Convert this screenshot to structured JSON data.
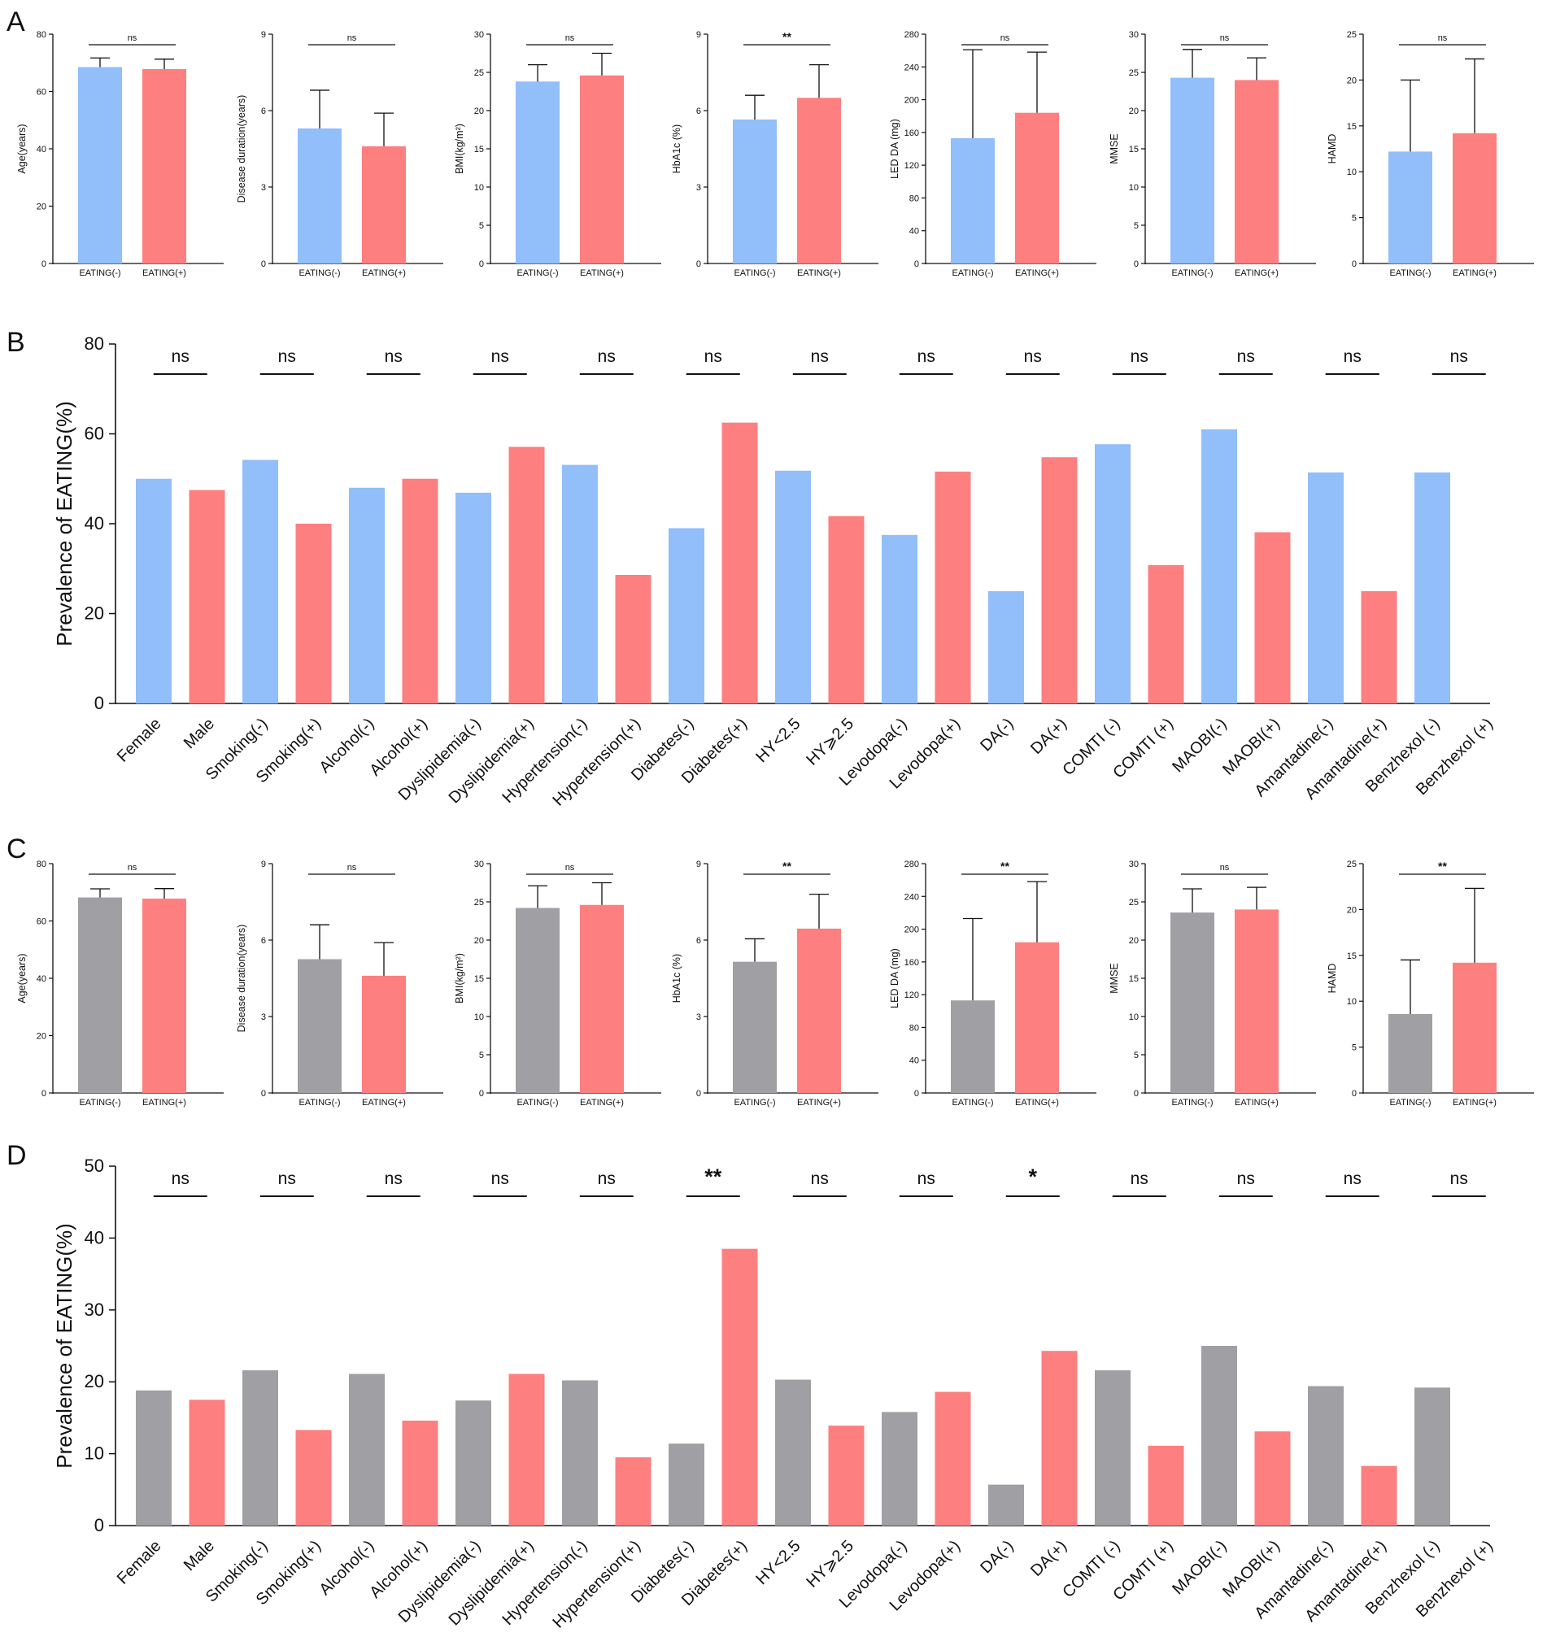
{
  "colors": {
    "blue": "#92bef9",
    "red": "#fd7f80",
    "gray": "#a09fa4"
  },
  "panel_letters": [
    "A",
    "B",
    "C",
    "D"
  ],
  "chart_data": [
    {
      "panel": "A",
      "type": "bar",
      "title": "",
      "categories": [
        "EATING(-)",
        "EATING(+)"
      ],
      "subplots": [
        {
          "ylabel": "Age(years)",
          "ylim": [
            0,
            80
          ],
          "yticks": [
            "0",
            "20",
            "40",
            "60",
            "80"
          ],
          "values": [
            68.5,
            67.8
          ],
          "errors": [
            3.2,
            3.5
          ],
          "sig": "ns"
        },
        {
          "ylabel": "Disease duration(years)",
          "ylim": [
            0,
            9
          ],
          "yticks": [
            "0",
            "3",
            "6",
            "9"
          ],
          "values": [
            5.3,
            4.6
          ],
          "errors": [
            1.5,
            1.3
          ],
          "sig": "ns"
        },
        {
          "ylabel": "BMI(kg/m²)",
          "ylim": [
            0,
            30
          ],
          "yticks": [
            "0",
            "5",
            "10",
            "15",
            "20",
            "25",
            "30"
          ],
          "values": [
            23.8,
            24.6
          ],
          "errors": [
            2.2,
            2.9
          ],
          "sig": "ns"
        },
        {
          "ylabel": "HbA1c (%)",
          "ylim": [
            0,
            9
          ],
          "yticks": [
            "0",
            "3",
            "6",
            "9"
          ],
          "values": [
            5.65,
            6.5
          ],
          "errors": [
            0.95,
            1.3
          ],
          "sig": "**"
        },
        {
          "ylabel": "LED DA (mg)",
          "ylim": [
            0,
            280
          ],
          "yticks": [
            "0",
            "40",
            "80",
            "120",
            "160",
            "200",
            "240",
            "280"
          ],
          "values": [
            153,
            184
          ],
          "errors": [
            108,
            74
          ],
          "sig": "ns"
        },
        {
          "ylabel": "MMSE",
          "ylim": [
            0,
            30
          ],
          "yticks": [
            "0",
            "5",
            "10",
            "15",
            "20",
            "25",
            "30"
          ],
          "values": [
            24.3,
            24.0
          ],
          "errors": [
            3.7,
            2.9
          ],
          "sig": "ns"
        },
        {
          "ylabel": "HAMD",
          "ylim": [
            0,
            25
          ],
          "yticks": [
            "0",
            "5",
            "10",
            "15",
            "20",
            "25"
          ],
          "values": [
            12.2,
            14.2
          ],
          "errors": [
            7.8,
            8.1
          ],
          "sig": "ns"
        }
      ]
    },
    {
      "panel": "B",
      "type": "bar",
      "ylabel": "Prevalence of EATING(%)",
      "ylim": [
        0,
        80
      ],
      "yticks": [
        "0",
        "20",
        "40",
        "60",
        "80"
      ],
      "categories": [
        "Female",
        "Male",
        "Smoking(-)",
        "Smoking(+)",
        "Alcohol(-)",
        "Alcohol(+)",
        "Dyslipidemia(-)",
        "Dyslipidemia(+)",
        "Hypertension(-)",
        "Hypertension(+)",
        "Diabetes(-)",
        "Diabetes(+)",
        "HY<2.5",
        "HY⩾2.5",
        "Levodopa(-)",
        "Levodopa(+)",
        "DA(-)",
        "DA(+)",
        "COMTI (-)",
        "COMTI (+)",
        "MAOBI(-)",
        "MAOBI(+)",
        "Amantadine(-)",
        "Amantadine(+)",
        "Benzhexol (-)",
        "Benzhexol (+)"
      ],
      "values": [
        50,
        47.5,
        54.2,
        40,
        48,
        50,
        46.9,
        57.1,
        53.1,
        28.6,
        39,
        62.5,
        51.8,
        41.7,
        37.5,
        51.6,
        25,
        54.8,
        57.7,
        30.8,
        61,
        38.1,
        51.4,
        25,
        51.4,
        0
      ],
      "sig": [
        "ns",
        "ns",
        "ns",
        "ns",
        "ns",
        "ns",
        "ns",
        "ns",
        "ns",
        "ns",
        "ns",
        "ns",
        "ns"
      ]
    },
    {
      "panel": "C",
      "type": "bar",
      "title": "",
      "categories": [
        "EATING(-)",
        "EATING(+)"
      ],
      "subplots": [
        {
          "ylabel": "Age(years)",
          "ylim": [
            0,
            80
          ],
          "yticks": [
            "0",
            "20",
            "40",
            "60",
            "80"
          ],
          "values": [
            68.2,
            67.8
          ],
          "errors": [
            3,
            3.5
          ],
          "sig": "ns"
        },
        {
          "ylabel": "Disease duration(years)",
          "ylim": [
            0,
            9
          ],
          "yticks": [
            "0",
            "3",
            "6",
            "9"
          ],
          "values": [
            5.25,
            4.6
          ],
          "errors": [
            1.35,
            1.3
          ],
          "sig": "ns"
        },
        {
          "ylabel": "BMI(kg/m²)",
          "ylim": [
            0,
            30
          ],
          "yticks": [
            "0",
            "5",
            "10",
            "15",
            "20",
            "25",
            "30"
          ],
          "values": [
            24.2,
            24.6
          ],
          "errors": [
            2.9,
            2.9
          ],
          "sig": "ns"
        },
        {
          "ylabel": "HbA1c (%)",
          "ylim": [
            0,
            9
          ],
          "yticks": [
            "0",
            "3",
            "6",
            "9"
          ],
          "values": [
            5.15,
            6.45
          ],
          "errors": [
            0.9,
            1.35
          ],
          "sig": "**"
        },
        {
          "ylabel": "LED DA (mg)",
          "ylim": [
            0,
            280
          ],
          "yticks": [
            "0",
            "40",
            "80",
            "120",
            "160",
            "200",
            "240",
            "280"
          ],
          "values": [
            113,
            184
          ],
          "errors": [
            100,
            74
          ],
          "sig": "**"
        },
        {
          "ylabel": "MMSE",
          "ylim": [
            0,
            30
          ],
          "yticks": [
            "0",
            "5",
            "10",
            "15",
            "20",
            "25",
            "30"
          ],
          "values": [
            23.6,
            24.0
          ],
          "errors": [
            3.1,
            2.9
          ],
          "sig": "ns"
        },
        {
          "ylabel": "HAMD",
          "ylim": [
            0,
            25
          ],
          "yticks": [
            "0",
            "5",
            "10",
            "15",
            "20",
            "25"
          ],
          "values": [
            8.6,
            14.2
          ],
          "errors": [
            5.9,
            8.1
          ],
          "sig": "**"
        }
      ]
    },
    {
      "panel": "D",
      "type": "bar",
      "ylabel": "Prevalence of EATING(%)",
      "ylim": [
        0,
        50
      ],
      "yticks": [
        "0",
        "10",
        "20",
        "30",
        "40",
        "50"
      ],
      "categories": [
        "Female",
        "Male",
        "Smoking(-)",
        "Smoking(+)",
        "Alcohol(-)",
        "Alcohol(+)",
        "Dyslipidemia(-)",
        "Dyslipidemia(+)",
        "Hypertension(-)",
        "Hypertension(+)",
        "Diabetes(-)",
        "Diabetes(+)",
        "HY<2.5",
        "HY⩾2.5",
        "Levodopa(-)",
        "Levodopa(+)",
        "DA(-)",
        "DA(+)",
        "COMTI (-)",
        "COMTI (+)",
        "MAOBI(-)",
        "MAOBI(+)",
        "Amantadine(-)",
        "Amantadine(+)",
        "Benzhexol (-)",
        "Benzhexol (+)"
      ],
      "values": [
        18.8,
        17.5,
        21.6,
        13.3,
        21.1,
        14.6,
        17.4,
        21.1,
        20.2,
        9.5,
        11.4,
        38.5,
        20.3,
        13.9,
        15.8,
        18.6,
        5.7,
        24.3,
        21.6,
        11.1,
        25,
        13.1,
        19.4,
        8.3,
        19.2,
        0
      ],
      "sig": [
        "ns",
        "ns",
        "ns",
        "ns",
        "ns",
        "**",
        "ns",
        "ns",
        "*",
        "ns",
        "ns",
        "ns",
        "ns"
      ]
    }
  ]
}
